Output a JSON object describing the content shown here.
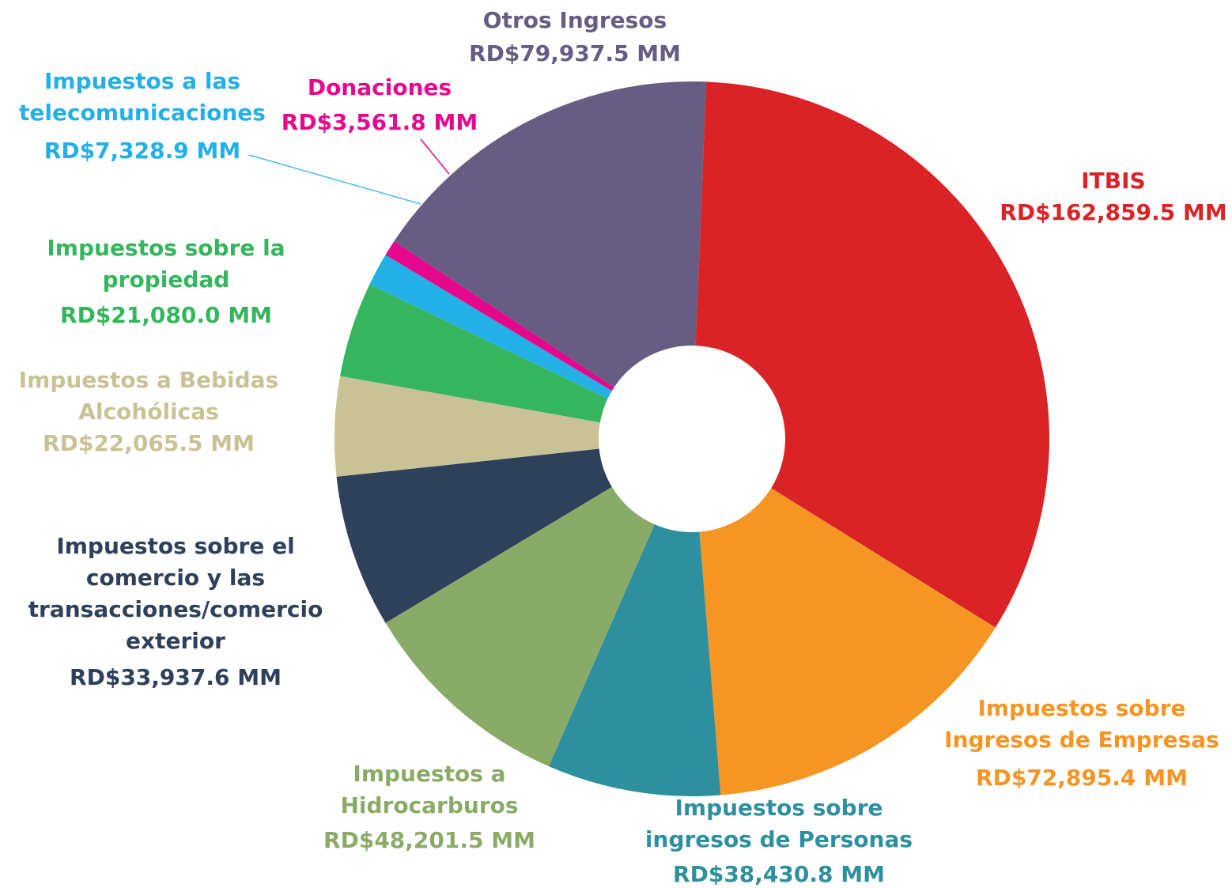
{
  "chart_data": {
    "type": "donut",
    "categories": [
      [
        "ITBIS"
      ],
      [
        "Impuestos sobre",
        "Ingresos de Empresas"
      ],
      [
        "Impuestos sobre",
        "ingresos de Personas"
      ],
      [
        "Impuestos a",
        "Hidrocarburos"
      ],
      [
        "Impuestos sobre el",
        "comercio y las",
        "transacciones/comercio",
        "exterior"
      ],
      [
        "Impuestos a Bebidas",
        "Alcohólicas"
      ],
      [
        "Impuestos sobre la",
        "propiedad"
      ],
      [
        "Impuestos a las",
        "telecomunicaciones"
      ],
      [
        "Donaciones"
      ],
      [
        "Otros Ingresos"
      ]
    ],
    "values": [
      162859.5,
      72895.4,
      38430.8,
      48201.5,
      33937.6,
      22065.5,
      21080.0,
      7328.9,
      3561.8,
      79937.5
    ],
    "value_labels": [
      "RD$162,859.5 MM",
      "RD$72,895.4 MM",
      "RD$38,430.8 MM",
      "RD$48,201.5 MM",
      "RD$33,937.6 MM",
      "RD$22,065.5 MM",
      "RD$21,080.0 MM",
      "RD$7,328.9 MM",
      "RD$3,561.8 MM",
      "RD$79,937.5 MM"
    ],
    "colors": [
      "#d92326",
      "#f49524",
      "#2e8f9e",
      "#8aab68",
      "#2e405a",
      "#c8c296",
      "#35b55e",
      "#22b0e6",
      "#e6088c",
      "#675c82"
    ]
  }
}
